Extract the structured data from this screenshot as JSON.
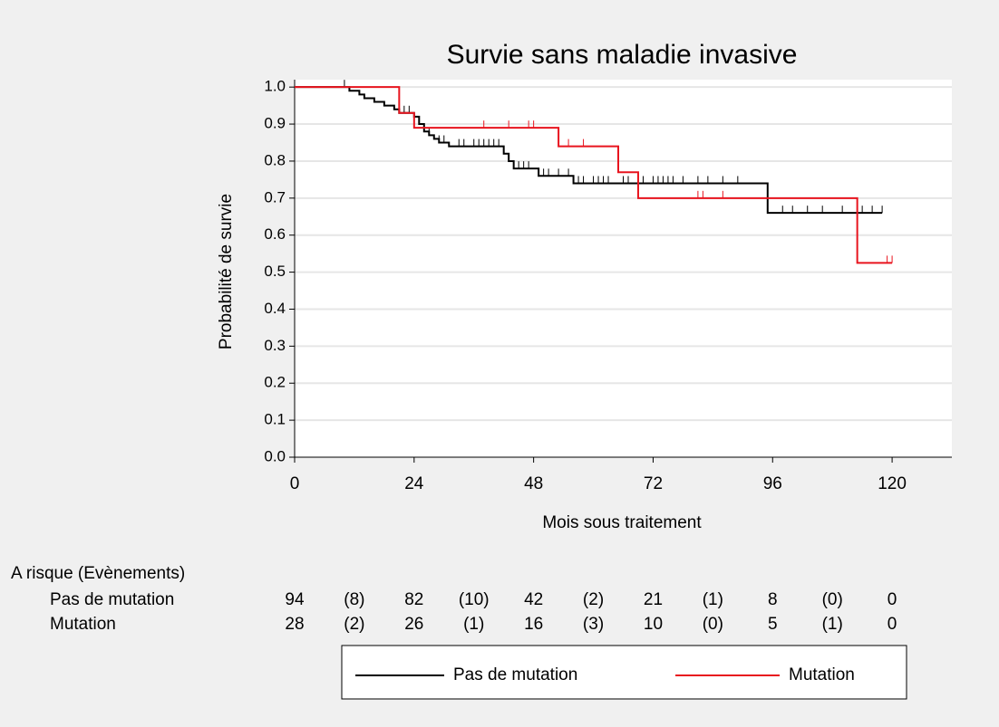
{
  "chart_data": {
    "type": "km",
    "title": "Survie sans maladie invasive",
    "xlabel": "Mois sous traitement",
    "ylabel": "Probabilité de survie",
    "xlim": [
      0,
      132
    ],
    "xticks": [
      0,
      24,
      48,
      72,
      96,
      120
    ],
    "ylim": [
      0,
      1.02
    ],
    "yticks": [
      {
        "value": 0,
        "label": "0.0"
      },
      0.1,
      0.2,
      0.3,
      0.4,
      0.5,
      0.6,
      0.7,
      0.8,
      0.9,
      {
        "value": 1,
        "label": "1.0"
      }
    ],
    "grid": true,
    "series": [
      {
        "name": "Pas de mutation",
        "color": "#000000",
        "x": [
          0,
          11,
          13,
          14,
          16,
          18,
          20,
          21,
          24,
          25,
          26,
          27,
          28,
          29,
          31,
          42,
          43,
          44,
          49,
          56,
          95,
          118
        ],
        "values": [
          1.0,
          0.99,
          0.98,
          0.97,
          0.96,
          0.95,
          0.94,
          0.93,
          0.92,
          0.9,
          0.88,
          0.87,
          0.86,
          0.85,
          0.84,
          0.82,
          0.8,
          0.78,
          0.76,
          0.74,
          0.66,
          0.66
        ],
        "censored": [
          10,
          22,
          23,
          27,
          29,
          30,
          33,
          34,
          36,
          37,
          38,
          39,
          40,
          41,
          45,
          46,
          47,
          50,
          51,
          53,
          55,
          56,
          57,
          58,
          60,
          61,
          62,
          63,
          66,
          67,
          70,
          72,
          73,
          74,
          75,
          76,
          78,
          81,
          83,
          86,
          89,
          98,
          100,
          103,
          106,
          110,
          114,
          116,
          118
        ],
        "at_risk": [
          94,
          82,
          42,
          21,
          8,
          0
        ],
        "events": [
          8,
          10,
          2,
          1,
          0
        ],
        "event_labels": [
          "(8)",
          "(10)",
          "(2)",
          "(1)",
          "(0)"
        ]
      },
      {
        "name": "Mutation",
        "color": "#e8141e",
        "x": [
          0,
          21,
          24,
          53,
          65,
          69,
          113,
          120
        ],
        "values": [
          1.0,
          0.93,
          0.89,
          0.84,
          0.77,
          0.7,
          0.525,
          0.525
        ],
        "censored": [
          38,
          43,
          47,
          48,
          55,
          58,
          81,
          82,
          86,
          119,
          120
        ],
        "at_risk": [
          28,
          26,
          16,
          10,
          5,
          0
        ],
        "events": [
          2,
          1,
          3,
          0,
          1
        ],
        "event_labels": [
          "(2)",
          "(1)",
          "(3)",
          "(0)",
          "(1)"
        ]
      }
    ],
    "risk_table_title": "A risque (Evènements)"
  }
}
